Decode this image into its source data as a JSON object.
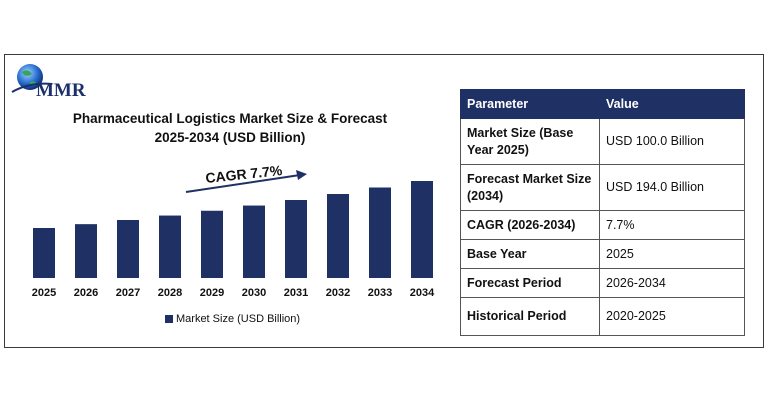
{
  "logo": {
    "text": "MMR"
  },
  "chart_data": {
    "type": "bar",
    "title_line1": "Pharmaceutical Logistics Market Size & Forecast",
    "title_line2": "2025-2034 (USD Billion)",
    "categories": [
      "2025",
      "2026",
      "2027",
      "2028",
      "2029",
      "2030",
      "2031",
      "2032",
      "2033",
      "2034"
    ],
    "series": [
      {
        "name": "Market Size (USD Billion)",
        "values": [
          100.0,
          107.7,
          116.0,
          124.9,
          134.5,
          144.9,
          156.0,
          168.0,
          181.0,
          194.0
        ]
      }
    ],
    "annotation": "CAGR 7.7%",
    "bar_color": "#1f3164",
    "legend_position": "bottom",
    "grid": false
  },
  "table": {
    "headers": [
      "Parameter",
      "Value"
    ],
    "rows": [
      [
        "Market Size (Base Year 2025)",
        "USD 100.0 Billion"
      ],
      [
        "Forecast Market Size (2034)",
        "USD 194.0 Billion"
      ],
      [
        "CAGR (2026-2034)",
        "7.7%"
      ],
      [
        "Base Year",
        "2025"
      ],
      [
        "Forecast Period",
        "2026-2034"
      ],
      [
        "Historical Period",
        "2020-2025"
      ]
    ]
  }
}
